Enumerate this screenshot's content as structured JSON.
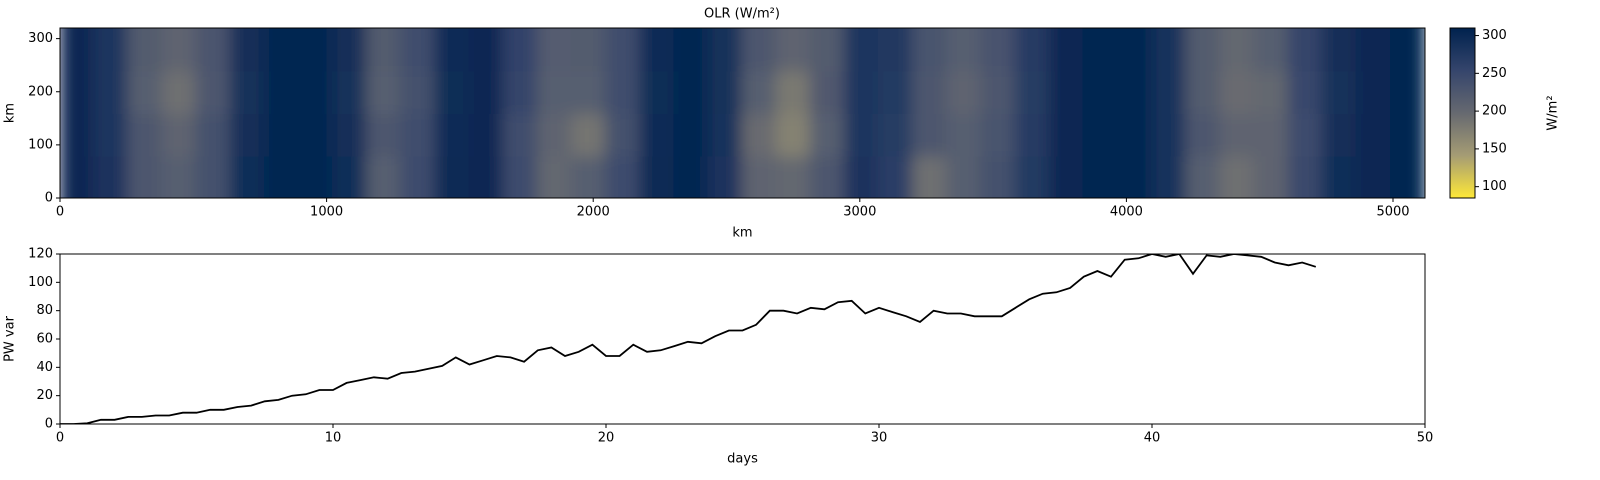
{
  "chart_data": [
    {
      "type": "heatmap",
      "title": "OLR (W/m²)",
      "x_label": "km",
      "y_label": "km",
      "xbins": [
        0,
        128,
        256,
        384,
        512,
        640,
        768,
        896,
        1024,
        1152,
        1280,
        1408,
        1536,
        1664,
        1792,
        1920,
        2048,
        2176,
        2304,
        2432,
        2560,
        2688,
        2816,
        2944,
        3072,
        3200,
        3328,
        3456,
        3584,
        3712,
        3840,
        3968,
        4096,
        4224,
        4352,
        4480,
        4608,
        4736,
        4864,
        4992,
        5120
      ],
      "ybins": [
        0,
        80,
        160,
        240,
        320
      ],
      "z": [
        [
          300,
          282,
          225,
          215,
          235,
          292,
          305,
          305,
          292,
          215,
          245,
          297,
          300,
          245,
          200,
          215,
          245,
          297,
          305,
          282,
          205,
          200,
          225,
          282,
          265,
          190,
          215,
          235,
          272,
          300,
          305,
          305,
          285,
          215,
          190,
          205,
          248,
          292,
          300,
          305
        ],
        [
          300,
          280,
          225,
          205,
          235,
          290,
          305,
          305,
          290,
          225,
          240,
          295,
          300,
          240,
          205,
          185,
          235,
          295,
          305,
          285,
          195,
          170,
          215,
          280,
          268,
          225,
          215,
          230,
          270,
          300,
          305,
          305,
          285,
          225,
          205,
          205,
          245,
          290,
          300,
          305
        ],
        [
          300,
          278,
          215,
          190,
          225,
          288,
          305,
          305,
          288,
          215,
          235,
          293,
          300,
          255,
          215,
          215,
          240,
          293,
          305,
          288,
          215,
          180,
          222,
          278,
          272,
          225,
          205,
          225,
          268,
          300,
          305,
          305,
          283,
          220,
          195,
          200,
          252,
          288,
          300,
          305
        ],
        [
          300,
          280,
          220,
          205,
          228,
          290,
          305,
          305,
          290,
          220,
          242,
          295,
          300,
          258,
          218,
          220,
          242,
          295,
          305,
          287,
          225,
          205,
          220,
          280,
          275,
          230,
          215,
          232,
          270,
          300,
          305,
          305,
          285,
          220,
          200,
          215,
          255,
          290,
          300,
          305
        ]
      ],
      "xlim": [
        0,
        5120
      ],
      "xticks": [
        0,
        1000,
        2000,
        3000,
        4000,
        5000
      ],
      "ylim": [
        0,
        320
      ],
      "yticks": [
        0,
        100,
        200,
        300
      ],
      "colormap": [
        "#fee838",
        "#a59c74",
        "#666970",
        "#35456c",
        "#00224e"
      ],
      "colorbar": {
        "label": "W/m²",
        "lim": [
          85,
          310
        ],
        "ticks": [
          100,
          150,
          200,
          250,
          300
        ]
      }
    },
    {
      "type": "line",
      "x_label": "days",
      "y_label": "PW var",
      "color": "#000000",
      "x": [
        0,
        0.5,
        1,
        1.5,
        2,
        2.5,
        3,
        3.5,
        4,
        4.5,
        5,
        5.5,
        6,
        6.5,
        7,
        7.5,
        8,
        8.5,
        9,
        9.5,
        10,
        10.5,
        11,
        11.5,
        12,
        12.5,
        13,
        13.5,
        14,
        14.5,
        15,
        15.5,
        16,
        16.5,
        17,
        17.5,
        18,
        18.5,
        19,
        19.5,
        20,
        20.5,
        21,
        21.5,
        22,
        22.5,
        23,
        23.5,
        24,
        24.5,
        25,
        25.5,
        26,
        26.5,
        27,
        27.5,
        28,
        28.5,
        29,
        29.5,
        30,
        30.5,
        31,
        31.5,
        32,
        32.5,
        33,
        33.5,
        34,
        34.5,
        35,
        35.5,
        36,
        36.5,
        37,
        37.5,
        38,
        38.5,
        39,
        39.5,
        40,
        40.5,
        41,
        41.5,
        42,
        42.5,
        43,
        43.5,
        44,
        44.5,
        45,
        45.5,
        46
      ],
      "values": [
        0,
        0,
        0.5,
        3,
        3,
        5,
        5,
        6,
        6,
        8,
        8,
        10,
        10,
        12,
        13,
        16,
        17,
        20,
        21,
        24,
        24,
        29,
        31,
        33,
        32,
        36,
        37,
        39,
        41,
        47,
        42,
        45,
        48,
        47,
        44,
        52,
        54,
        48,
        51,
        56,
        48,
        48,
        56,
        51,
        52,
        55,
        58,
        57,
        62,
        66,
        66,
        70,
        80,
        80,
        78,
        82,
        81,
        86,
        87,
        78,
        82,
        79,
        76,
        72,
        80,
        78,
        78,
        76,
        76,
        76,
        82,
        88,
        92,
        93,
        96,
        104,
        108,
        104,
        116,
        117,
        120,
        118,
        120,
        106,
        119,
        118,
        120,
        119,
        118,
        114,
        112,
        114,
        111
      ],
      "xlim": [
        0,
        50
      ],
      "xticks": [
        0,
        10,
        20,
        30,
        40,
        50
      ],
      "ylim": [
        0,
        120
      ],
      "yticks": [
        0,
        20,
        40,
        60,
        80,
        100,
        120
      ]
    }
  ]
}
